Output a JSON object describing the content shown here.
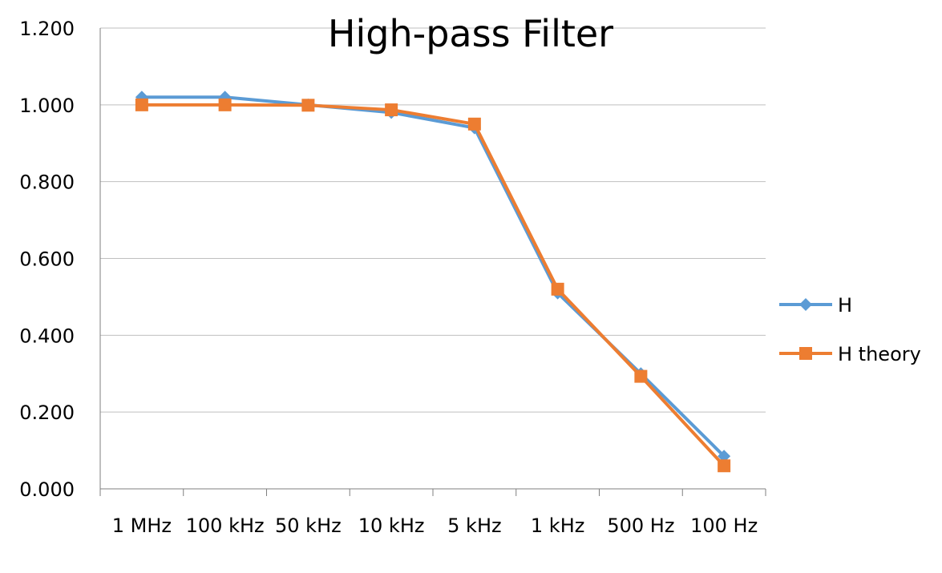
{
  "chart_data": {
    "type": "line",
    "title": "High-pass Filter",
    "xlabel": "",
    "ylabel": "",
    "categories": [
      "1 MHz",
      "100 kHz",
      "50 kHz",
      "10 kHz",
      "5 kHz",
      "1 kHz",
      "500 Hz",
      "100 Hz"
    ],
    "ylim": [
      0,
      1.2
    ],
    "yticks": [
      "0.000",
      "0.200",
      "0.400",
      "0.600",
      "0.800",
      "1.000",
      "1.200"
    ],
    "grid": true,
    "legend_position": "right",
    "series": [
      {
        "name": "H",
        "marker": "diamond",
        "color": "#5b9bd5",
        "values": [
          1.02,
          1.02,
          1.0,
          0.98,
          0.94,
          0.51,
          0.3,
          0.085
        ]
      },
      {
        "name": "H theory",
        "marker": "square",
        "color": "#ed7d31",
        "values": [
          1.0,
          1.0,
          0.999,
          0.987,
          0.95,
          0.52,
          0.293,
          0.06
        ]
      }
    ]
  }
}
